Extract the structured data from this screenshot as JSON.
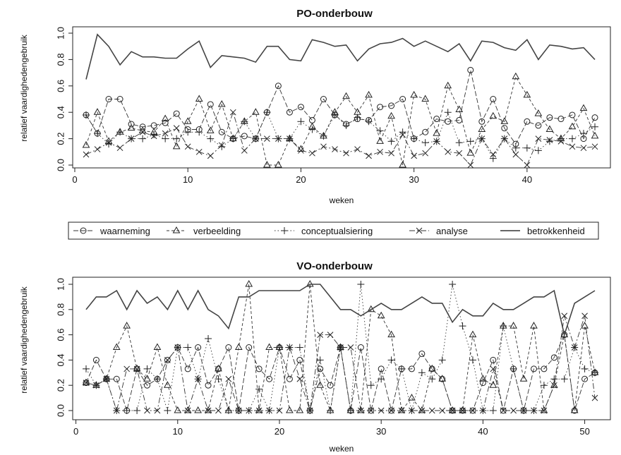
{
  "legend": [
    {
      "key": "waarneming",
      "label": "waarneming",
      "marker": "circle",
      "dash": "7,3"
    },
    {
      "key": "verbeelding",
      "label": "verbeelding",
      "marker": "triangle",
      "dash": "4,3"
    },
    {
      "key": "conceptualsiering",
      "label": "conceptualsiering",
      "marker": "plus",
      "dash": "1.5,3"
    },
    {
      "key": "analyse",
      "label": "analyse",
      "marker": "cross",
      "dash": "8,3,2,3"
    },
    {
      "key": "betrokkenheid",
      "label": "betrokkenheid",
      "marker": "none",
      "dash": ""
    }
  ],
  "chart_data": [
    {
      "type": "line",
      "title": "PO-onderbouw",
      "xlabel": "weken",
      "ylabel": "relatief vaardighedengebruik",
      "xlim": [
        0,
        47
      ],
      "ylim": [
        0,
        1.0
      ],
      "x_ticks": [
        0,
        10,
        20,
        30,
        40
      ],
      "y_ticks": [
        0.0,
        0.2,
        0.4,
        0.6,
        0.8,
        1.0
      ],
      "y_tick_labels": [
        "0.0",
        "0.2",
        "0.4",
        "0.6",
        "0.8",
        "1.0"
      ],
      "x": [
        1,
        2,
        3,
        4,
        5,
        6,
        7,
        8,
        9,
        10,
        11,
        12,
        13,
        14,
        15,
        16,
        17,
        18,
        19,
        20,
        21,
        22,
        23,
        24,
        25,
        26,
        27,
        28,
        29,
        30,
        31,
        32,
        33,
        34,
        35,
        36,
        37,
        38,
        39,
        40,
        41,
        42,
        43,
        44,
        45,
        46
      ],
      "series": [
        {
          "name": "waarneming",
          "values": [
            0.38,
            0.24,
            0.5,
            0.5,
            0.31,
            0.29,
            0.3,
            0.32,
            0.39,
            0.27,
            0.27,
            0.46,
            0.25,
            0.2,
            0.22,
            0.2,
            0.4,
            0.6,
            0.4,
            0.44,
            0.34,
            0.5,
            0.38,
            0.31,
            0.35,
            0.34,
            0.44,
            0.45,
            0.5,
            0.2,
            0.25,
            0.35,
            0.33,
            0.34,
            0.72,
            0.33,
            0.5,
            0.28,
            0.16,
            0.33,
            0.3,
            0.36,
            0.35,
            0.38,
            0.2,
            0.36
          ]
        },
        {
          "name": "verbeelding",
          "values": [
            0.15,
            0.4,
            0.18,
            0.25,
            0.28,
            0.26,
            0.25,
            0.35,
            0.14,
            0.33,
            0.5,
            0.26,
            0.46,
            0.2,
            0.33,
            0.4,
            0.0,
            0.0,
            0.2,
            0.12,
            0.29,
            0.22,
            0.4,
            0.52,
            0.4,
            0.53,
            0.18,
            0.37,
            0.0,
            0.53,
            0.5,
            0.24,
            0.6,
            0.42,
            0.09,
            0.27,
            0.37,
            0.33,
            0.67,
            0.53,
            0.39,
            0.27,
            0.2,
            0.29,
            0.43,
            0.22
          ]
        },
        {
          "name": "conceptualsiering",
          "values": [
            0.38,
            0.24,
            0.16,
            0.25,
            0.2,
            0.2,
            0.23,
            0.2,
            0.2,
            0.25,
            0.25,
            0.2,
            0.14,
            0.2,
            0.33,
            0.2,
            0.4,
            0.2,
            0.2,
            0.33,
            0.27,
            0.22,
            0.38,
            0.3,
            0.36,
            0.33,
            0.26,
            0.18,
            0.25,
            0.2,
            0.17,
            0.18,
            0.4,
            0.17,
            0.18,
            0.2,
            0.05,
            0.2,
            0.13,
            0.13,
            0.11,
            0.18,
            0.2,
            0.2,
            0.24,
            0.29
          ]
        },
        {
          "name": "analyse",
          "values": [
            0.08,
            0.12,
            0.17,
            0.13,
            0.2,
            0.25,
            0.22,
            0.24,
            0.28,
            0.14,
            0.1,
            0.07,
            0.15,
            0.4,
            0.11,
            0.2,
            0.2,
            0.2,
            0.2,
            0.11,
            0.09,
            0.14,
            0.12,
            0.09,
            0.12,
            0.07,
            0.1,
            0.09,
            0.23,
            0.07,
            0.09,
            0.18,
            0.1,
            0.09,
            0.0,
            0.2,
            0.08,
            0.2,
            0.08,
            0.0,
            0.2,
            0.19,
            0.18,
            0.14,
            0.13,
            0.14
          ]
        },
        {
          "name": "betrokkenheid",
          "values": [
            0.65,
            0.99,
            0.9,
            0.76,
            0.86,
            0.82,
            0.82,
            0.81,
            0.81,
            0.88,
            0.94,
            0.74,
            0.83,
            0.82,
            0.81,
            0.78,
            0.9,
            0.9,
            0.8,
            0.79,
            0.95,
            0.93,
            0.9,
            0.91,
            0.79,
            0.88,
            0.92,
            0.93,
            0.96,
            0.9,
            0.94,
            0.9,
            0.86,
            0.92,
            0.79,
            0.94,
            0.93,
            0.89,
            0.87,
            0.95,
            0.8,
            0.91,
            0.9,
            0.88,
            0.89,
            0.8
          ]
        }
      ]
    },
    {
      "type": "line",
      "title": "VO-onderbouw",
      "xlabel": "weken",
      "ylabel": "relatief vaardighedengebruik",
      "xlim": [
        0,
        51.5
      ],
      "ylim": [
        0,
        1.0
      ],
      "x_ticks": [
        0,
        10,
        20,
        30,
        40,
        50
      ],
      "y_ticks": [
        0.0,
        0.2,
        0.4,
        0.6,
        0.8,
        1.0
      ],
      "y_tick_labels": [
        "0.0",
        "0.2",
        "0.4",
        "0.6",
        "0.8",
        "1.0"
      ],
      "x": [
        1,
        2,
        3,
        4,
        5,
        6,
        7,
        8,
        9,
        10,
        11,
        12,
        13,
        14,
        15,
        16,
        17,
        18,
        19,
        20,
        21,
        22,
        23,
        24,
        25,
        26,
        27,
        28,
        29,
        30,
        31,
        32,
        33,
        34,
        35,
        36,
        37,
        38,
        39,
        40,
        41,
        42,
        43,
        44,
        45,
        46,
        47,
        48,
        49,
        50,
        51
      ],
      "series": [
        {
          "name": "waarneming",
          "values": [
            0.22,
            0.4,
            0.25,
            0.25,
            0.0,
            0.33,
            0.2,
            0.25,
            0.4,
            0.5,
            0.33,
            0.5,
            0.2,
            0.33,
            0.5,
            0.0,
            0.5,
            0.33,
            0.25,
            0.5,
            0.25,
            0.4,
            0.0,
            0.33,
            0.2,
            0.5,
            0.0,
            0.5,
            0.0,
            0.33,
            0.0,
            0.33,
            0.33,
            0.45,
            0.33,
            0.25,
            0.0,
            0.0,
            0.0,
            0.22,
            0.4,
            0.0,
            0.33,
            0.0,
            0.33,
            0.33,
            0.42,
            0.6,
            0.0,
            0.25,
            0.3
          ]
        },
        {
          "name": "verbeelding",
          "values": [
            0.22,
            0.2,
            0.25,
            0.5,
            0.67,
            0.33,
            0.25,
            0.5,
            0.2,
            0.0,
            0.0,
            0.0,
            0.0,
            0.33,
            0.0,
            0.5,
            1.0,
            0.0,
            0.5,
            0.5,
            0.0,
            0.0,
            1.0,
            0.2,
            0.0,
            0.5,
            0.0,
            0.0,
            0.8,
            0.75,
            0.6,
            0.0,
            0.1,
            0.0,
            0.33,
            0.25,
            0.0,
            0.0,
            0.6,
            0.25,
            0.2,
            0.67,
            0.67,
            0.25,
            0.67,
            0.0,
            0.2,
            0.6,
            0.0,
            0.67,
            0.3
          ]
        },
        {
          "name": "conceptualsiering",
          "values": [
            0.33,
            0.2,
            0.25,
            0.0,
            0.0,
            0.0,
            0.33,
            0.25,
            0.0,
            0.5,
            0.5,
            0.25,
            0.57,
            0.25,
            0.0,
            0.0,
            0.0,
            0.17,
            0.0,
            0.5,
            0.5,
            0.5,
            0.0,
            0.4,
            0.0,
            0.5,
            0.0,
            1.0,
            0.2,
            0.25,
            0.4,
            0.33,
            0.0,
            0.3,
            0.25,
            0.4,
            1.0,
            0.67,
            0.4,
            0.0,
            0.0,
            0.67,
            0.33,
            0.0,
            0.0,
            0.2,
            0.25,
            0.25,
            0.5,
            0.33,
            0.3
          ]
        },
        {
          "name": "analyse",
          "values": [
            0.22,
            0.2,
            0.25,
            0.0,
            0.33,
            0.33,
            0.0,
            0.0,
            0.4,
            0.5,
            0.0,
            0.25,
            0.0,
            0.0,
            0.25,
            0.0,
            0.0,
            0.0,
            0.0,
            0.0,
            0.5,
            0.25,
            0.0,
            0.6,
            0.6,
            0.5,
            0.5,
            0.0,
            0.0,
            0.0,
            0.0,
            0.0,
            0.0,
            0.0,
            0.0,
            0.0,
            0.0,
            0.0,
            0.0,
            0.0,
            0.33,
            0.0,
            0.0,
            0.0,
            0.0,
            0.0,
            0.2,
            0.75,
            0.5,
            0.75,
            0.1
          ]
        },
        {
          "name": "betrokkenheid",
          "values": [
            0.8,
            0.9,
            0.9,
            0.95,
            0.8,
            0.95,
            0.85,
            0.9,
            0.8,
            0.95,
            0.8,
            0.95,
            0.8,
            0.75,
            0.65,
            0.9,
            0.9,
            0.95,
            0.95,
            0.95,
            0.95,
            0.95,
            1.0,
            1.0,
            0.9,
            0.8,
            0.8,
            0.75,
            0.8,
            0.85,
            0.8,
            0.8,
            0.85,
            0.9,
            0.85,
            0.85,
            0.7,
            0.8,
            0.75,
            0.75,
            0.85,
            0.8,
            0.8,
            0.85,
            0.9,
            0.9,
            0.95,
            0.6,
            0.85,
            0.9,
            0.95
          ]
        }
      ]
    }
  ]
}
